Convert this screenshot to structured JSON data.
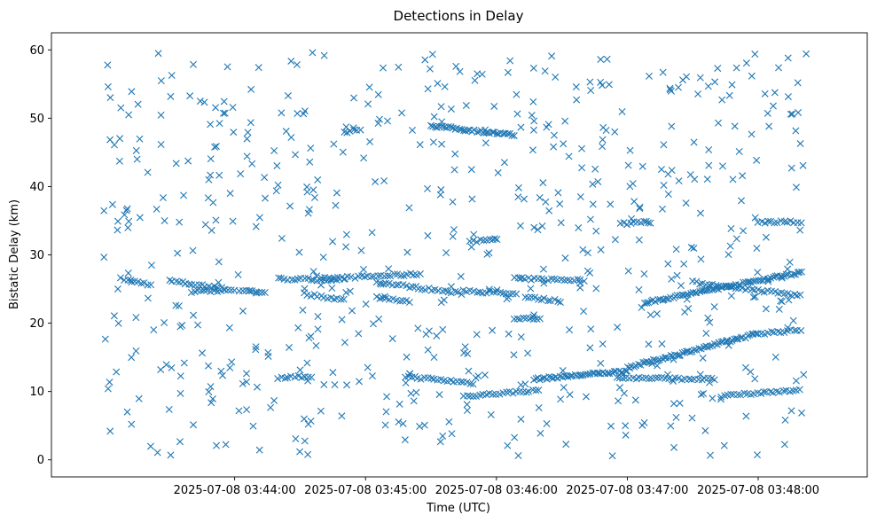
{
  "chart_data": {
    "type": "scatter",
    "title": "Detections in Delay",
    "xlabel": "Time (UTC)",
    "ylabel": "Bistatic Delay (km)",
    "x_unit": "seconds after 2025-07-08 03:43:00",
    "xlim": [
      -24,
      350
    ],
    "ylim": [
      -2.5,
      62.5
    ],
    "marker": "x",
    "color": "#1f77b4",
    "x_ticks": [
      {
        "value": 60,
        "label": "2025-07-08 03:44:00"
      },
      {
        "value": 120,
        "label": "2025-07-08 03:45:00"
      },
      {
        "value": 180,
        "label": "2025-07-08 03:46:00"
      },
      {
        "value": 240,
        "label": "2025-07-08 03:47:00"
      },
      {
        "value": 300,
        "label": "2025-07-08 03:48:00"
      }
    ],
    "y_ticks": [
      {
        "value": 0,
        "label": "0"
      },
      {
        "value": 10,
        "label": "10"
      },
      {
        "value": 20,
        "label": "20"
      },
      {
        "value": 30,
        "label": "30"
      },
      {
        "value": 40,
        "label": "40"
      },
      {
        "value": 50,
        "label": "50"
      },
      {
        "value": 60,
        "label": "60"
      }
    ],
    "tracks": [
      {
        "t0": 8,
        "y0": 26.5,
        "t1": 22,
        "y1": 25.6,
        "step": 1.5
      },
      {
        "t0": 30,
        "y0": 26.2,
        "t1": 60,
        "y1": 24.8,
        "step": 1.5
      },
      {
        "t0": 62,
        "y0": 24.8,
        "t1": 75,
        "y1": 24.5,
        "step": 1.5
      },
      {
        "t0": 80,
        "y0": 26.5,
        "t1": 110,
        "y1": 26.3,
        "step": 1.5
      },
      {
        "t0": 100,
        "y0": 26.5,
        "t1": 145,
        "y1": 27.2,
        "step": 1.5
      },
      {
        "t0": 125,
        "y0": 26.0,
        "t1": 165,
        "y1": 24.3,
        "step": 1.5
      },
      {
        "t0": 165,
        "y0": 24.8,
        "t1": 190,
        "y1": 24.2,
        "step": 1.5
      },
      {
        "t0": 190,
        "y0": 26.5,
        "t1": 220,
        "y1": 26.3,
        "step": 1.5
      },
      {
        "t0": 92,
        "y0": 24.3,
        "t1": 110,
        "y1": 23.4,
        "step": 1.5
      },
      {
        "t0": 125,
        "y0": 23.8,
        "t1": 140,
        "y1": 23.2,
        "step": 1.5
      },
      {
        "t0": 193,
        "y0": 23.8,
        "t1": 210,
        "y1": 23.2,
        "step": 1.5
      },
      {
        "t0": 150,
        "y0": 48.9,
        "t1": 188,
        "y1": 47.5,
        "step": 1.0
      },
      {
        "t0": 138,
        "y0": 12.2,
        "t1": 170,
        "y1": 11.2,
        "step": 1.5
      },
      {
        "t0": 165,
        "y0": 9.3,
        "t1": 200,
        "y1": 10.2,
        "step": 1.5
      },
      {
        "t0": 197,
        "y0": 11.8,
        "t1": 240,
        "y1": 13.0,
        "step": 1.0
      },
      {
        "t0": 240,
        "y0": 13.5,
        "t1": 300,
        "y1": 18.5,
        "step": 1.0
      },
      {
        "t0": 300,
        "y0": 18.5,
        "t1": 320,
        "y1": 19.0,
        "step": 1.5
      },
      {
        "t0": 248,
        "y0": 23.0,
        "t1": 320,
        "y1": 27.5,
        "step": 1.0
      },
      {
        "t0": 270,
        "y0": 26.0,
        "t1": 320,
        "y1": 24.0,
        "step": 1.5
      },
      {
        "t0": 300,
        "y0": 34.8,
        "t1": 320,
        "y1": 34.8,
        "step": 1.5
      },
      {
        "t0": 237,
        "y0": 34.5,
        "t1": 250,
        "y1": 34.9,
        "step": 1.5
      },
      {
        "t0": 168,
        "y0": 32.0,
        "t1": 180,
        "y1": 32.2,
        "step": 1.5
      },
      {
        "t0": 188,
        "y0": 20.5,
        "t1": 200,
        "y1": 20.8,
        "step": 1.5
      },
      {
        "t0": 80,
        "y0": 12.0,
        "t1": 95,
        "y1": 12.2,
        "step": 1.5
      },
      {
        "t0": 110,
        "y0": 48.0,
        "t1": 118,
        "y1": 48.3,
        "step": 1.5
      },
      {
        "t0": 235,
        "y0": 12.0,
        "t1": 280,
        "y1": 11.8,
        "step": 1.5
      },
      {
        "t0": 283,
        "y0": 9.3,
        "t1": 320,
        "y1": 10.3,
        "step": 1.5
      },
      {
        "t0": 40,
        "y0": 24.6,
        "t1": 55,
        "y1": 24.8,
        "step": 1.5
      }
    ],
    "scatter_noise": {
      "count": 620,
      "t_min": 0,
      "t_max": 322,
      "y_min": 0.5,
      "y_max": 59.8,
      "seed": 7
    }
  }
}
